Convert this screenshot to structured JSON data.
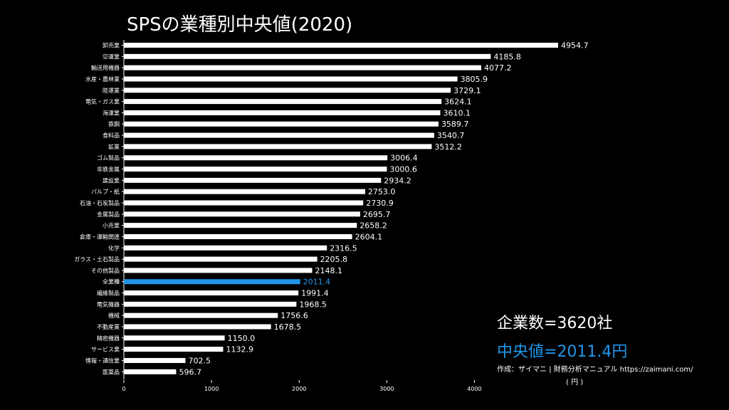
{
  "header": {
    "title": "SPSの業種別中央値(2020)"
  },
  "summary": {
    "count_label": "企業数=3620社",
    "median_label": "中央値=2011.4円",
    "credit": "作成：ザイマニ | 財務分析マニュアル https://zaimani.com/"
  },
  "axis": {
    "unit": "( 円 )"
  },
  "colors": {
    "bar": "#ffffff",
    "highlight": "#2196e8",
    "background": "#000000"
  },
  "chart_data": {
    "type": "bar",
    "orientation": "horizontal",
    "categories": [
      "卸売業",
      "空運業",
      "輸送用機器",
      "水産・農林業",
      "陸運業",
      "電気・ガス業",
      "海運業",
      "鉄鋼",
      "食料品",
      "鉱業",
      "ゴム製品",
      "非鉄金属",
      "建設業",
      "パルプ・紙",
      "石油・石炭製品",
      "金属製品",
      "小売業",
      "倉庫・運輸関連",
      "化学",
      "ガラス・土石製品",
      "その他製品",
      "全業種",
      "繊維製品",
      "電気機器",
      "機械",
      "不動産業",
      "精密機器",
      "サービス業",
      "情報・通信業",
      "医薬品"
    ],
    "values": [
      4954.7,
      4185.8,
      4077.2,
      3805.9,
      3729.1,
      3624.1,
      3610.1,
      3589.7,
      3540.7,
      3512.2,
      3006.4,
      3000.6,
      2934.2,
      2753.0,
      2730.9,
      2695.7,
      2658.2,
      2604.1,
      2316.5,
      2205.8,
      2148.1,
      2011.4,
      1991.4,
      1968.5,
      1756.6,
      1678.5,
      1150.0,
      1132.9,
      702.5,
      596.7
    ],
    "value_labels": [
      "4954.7",
      "4185.8",
      "4077.2",
      "3805.9",
      "3729.1",
      "3624.1",
      "3610.1",
      "3589.7",
      "3540.7",
      "3512.2",
      "3006.4",
      "3000.6",
      "2934.2",
      "2753.0",
      "2730.9",
      "2695.7",
      "2658.2",
      "2604.1",
      "2316.5",
      "2205.8",
      "2148.1",
      "2011.4",
      "1991.4",
      "1968.5",
      "1756.6",
      "1678.5",
      "1150.0",
      "1132.9",
      "702.5",
      "596.7"
    ],
    "highlight_category": "全業種",
    "xticks": [
      "0",
      "1000",
      "2000",
      "3000",
      "4000"
    ],
    "xlim": [
      0,
      5000
    ],
    "grid": false
  }
}
